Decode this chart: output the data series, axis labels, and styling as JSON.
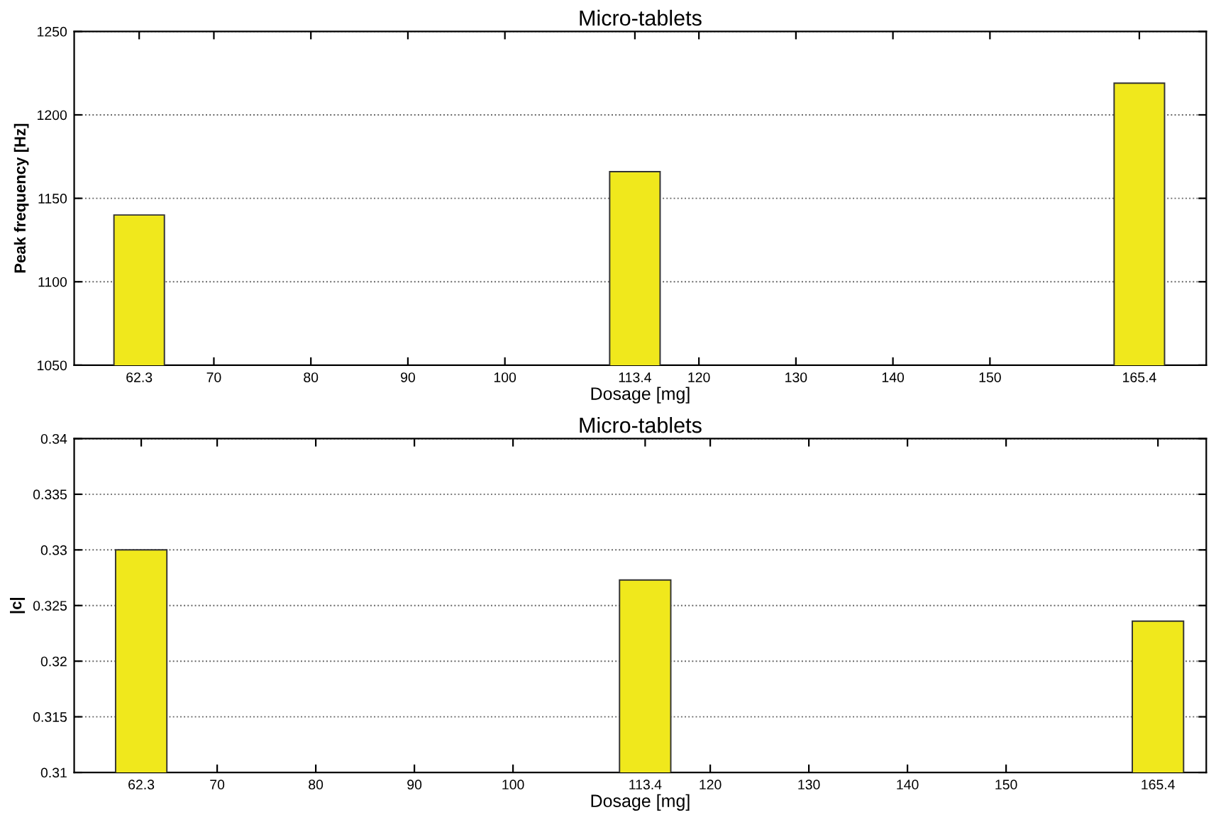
{
  "chart_data": [
    {
      "type": "bar",
      "title": "Micro-tablets",
      "xlabel": "Dosage [mg]",
      "ylabel": "Peak frequency [Hz]",
      "x": [
        62.3,
        113.4,
        165.4
      ],
      "values": [
        1140,
        1166,
        1219
      ],
      "color": "#f0e81c",
      "xlim": [
        55.6,
        172.3
      ],
      "xticks": [
        62.3,
        70,
        80,
        90,
        100,
        113.4,
        120,
        130,
        140,
        150,
        165.4
      ],
      "ylim": [
        1050,
        1250
      ],
      "yticks": [
        1050,
        1100,
        1150,
        1200,
        1250
      ],
      "grid": "y"
    },
    {
      "type": "bar",
      "title": "Micro-tablets",
      "xlabel": "Dosage [mg]",
      "ylabel": "|c|",
      "x": [
        62.3,
        113.4,
        165.4
      ],
      "values": [
        0.33,
        0.3273,
        0.3236
      ],
      "color": "#f0e81c",
      "xlim": [
        55.5,
        170.3
      ],
      "xticks": [
        62.3,
        70,
        80,
        90,
        100,
        113.4,
        120,
        130,
        140,
        150,
        165.4
      ],
      "ylim": [
        0.31,
        0.34
      ],
      "yticks": [
        0.31,
        0.315,
        0.32,
        0.325,
        0.33,
        0.335,
        0.34
      ],
      "grid": "y"
    }
  ]
}
